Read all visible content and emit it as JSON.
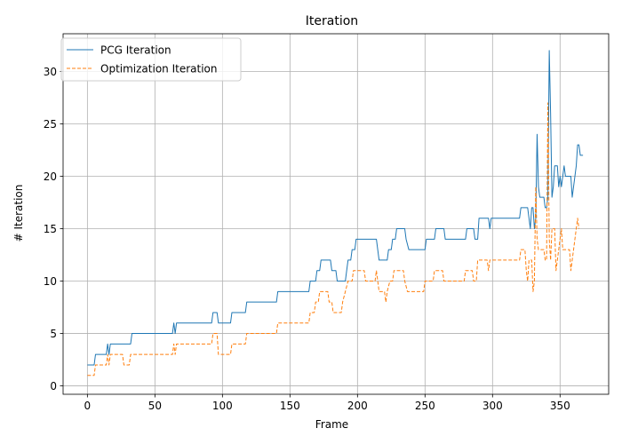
{
  "chart_data": {
    "type": "line",
    "title": "Iteration",
    "xlabel": "Frame",
    "ylabel": "# Iteration",
    "xlim": [
      -18,
      386
    ],
    "ylim": [
      -0.8,
      33.6
    ],
    "xticks": [
      0,
      50,
      100,
      150,
      200,
      250,
      300,
      350
    ],
    "yticks": [
      0,
      5,
      10,
      15,
      20,
      25,
      30
    ],
    "grid": true,
    "legend_position": "top-left",
    "series": [
      {
        "name": "PCG Iteration",
        "color": "#1f77b4",
        "style": "solid",
        "points": [
          [
            0,
            2
          ],
          [
            5,
            2
          ],
          [
            6,
            3
          ],
          [
            14,
            3
          ],
          [
            15,
            4
          ],
          [
            16,
            3
          ],
          [
            17,
            4
          ],
          [
            32,
            4
          ],
          [
            33,
            5
          ],
          [
            63,
            5
          ],
          [
            64,
            6
          ],
          [
            65,
            5
          ],
          [
            66,
            6
          ],
          [
            92,
            6
          ],
          [
            93,
            7
          ],
          [
            96,
            7
          ],
          [
            97,
            6
          ],
          [
            106,
            6
          ],
          [
            107,
            7
          ],
          [
            117,
            7
          ],
          [
            118,
            8
          ],
          [
            140,
            8
          ],
          [
            141,
            9
          ],
          [
            164,
            9
          ],
          [
            165,
            10
          ],
          [
            169,
            10
          ],
          [
            170,
            11
          ],
          [
            172,
            11
          ],
          [
            173,
            12
          ],
          [
            180,
            12
          ],
          [
            181,
            11
          ],
          [
            184,
            11
          ],
          [
            185,
            10
          ],
          [
            191,
            10
          ],
          [
            192,
            11
          ],
          [
            193,
            12
          ],
          [
            195,
            12
          ],
          [
            196,
            13
          ],
          [
            198,
            13
          ],
          [
            199,
            14
          ],
          [
            214,
            14
          ],
          [
            215,
            13
          ],
          [
            216,
            12
          ],
          [
            222,
            12
          ],
          [
            223,
            13
          ],
          [
            225,
            13
          ],
          [
            226,
            14
          ],
          [
            228,
            14
          ],
          [
            229,
            15
          ],
          [
            235,
            15
          ],
          [
            236,
            14
          ],
          [
            238,
            13
          ],
          [
            250,
            13
          ],
          [
            251,
            14
          ],
          [
            257,
            14
          ],
          [
            258,
            15
          ],
          [
            264,
            15
          ],
          [
            265,
            14
          ],
          [
            280,
            14
          ],
          [
            281,
            15
          ],
          [
            286,
            15
          ],
          [
            287,
            14
          ],
          [
            289,
            14
          ],
          [
            290,
            16
          ],
          [
            297,
            16
          ],
          [
            298,
            15
          ],
          [
            299,
            16
          ],
          [
            320,
            16
          ],
          [
            321,
            17
          ],
          [
            326,
            17
          ],
          [
            327,
            16
          ],
          [
            328,
            15
          ],
          [
            329,
            17
          ],
          [
            330,
            17
          ],
          [
            331,
            15
          ],
          [
            332,
            16
          ],
          [
            333,
            24
          ],
          [
            334,
            19
          ],
          [
            335,
            18
          ],
          [
            338,
            18
          ],
          [
            339,
            17
          ],
          [
            340,
            17
          ],
          [
            341,
            18
          ],
          [
            342,
            32
          ],
          [
            343,
            26
          ],
          [
            344,
            18
          ],
          [
            345,
            19
          ],
          [
            346,
            21
          ],
          [
            348,
            21
          ],
          [
            349,
            19
          ],
          [
            350,
            20
          ],
          [
            351,
            19
          ],
          [
            352,
            20
          ],
          [
            353,
            21
          ],
          [
            354,
            20
          ],
          [
            358,
            20
          ],
          [
            359,
            18
          ],
          [
            360,
            19
          ],
          [
            361,
            20
          ],
          [
            362,
            21
          ],
          [
            363,
            23
          ],
          [
            364,
            23
          ],
          [
            365,
            22
          ],
          [
            367,
            22
          ]
        ]
      },
      {
        "name": "Optimization Iteration",
        "color": "#ff7f0e",
        "style": "dashed",
        "points": [
          [
            0,
            1
          ],
          [
            5,
            1
          ],
          [
            6,
            2
          ],
          [
            14,
            2
          ],
          [
            15,
            3
          ],
          [
            16,
            2
          ],
          [
            17,
            3
          ],
          [
            26,
            3
          ],
          [
            27,
            2
          ],
          [
            31,
            2
          ],
          [
            32,
            3
          ],
          [
            63,
            3
          ],
          [
            64,
            4
          ],
          [
            65,
            3
          ],
          [
            66,
            4
          ],
          [
            92,
            4
          ],
          [
            93,
            5
          ],
          [
            96,
            5
          ],
          [
            97,
            3
          ],
          [
            106,
            3
          ],
          [
            107,
            4
          ],
          [
            117,
            4
          ],
          [
            118,
            5
          ],
          [
            140,
            5
          ],
          [
            141,
            6
          ],
          [
            164,
            6
          ],
          [
            165,
            7
          ],
          [
            168,
            7
          ],
          [
            169,
            8
          ],
          [
            171,
            8
          ],
          [
            172,
            9
          ],
          [
            178,
            9
          ],
          [
            179,
            8
          ],
          [
            181,
            8
          ],
          [
            182,
            7
          ],
          [
            188,
            7
          ],
          [
            189,
            8
          ],
          [
            191,
            9
          ],
          [
            193,
            10
          ],
          [
            196,
            10
          ],
          [
            197,
            11
          ],
          [
            205,
            11
          ],
          [
            206,
            10
          ],
          [
            213,
            10
          ],
          [
            214,
            11
          ],
          [
            215,
            10
          ],
          [
            216,
            9
          ],
          [
            220,
            9
          ],
          [
            221,
            8
          ],
          [
            222,
            9
          ],
          [
            224,
            10
          ],
          [
            226,
            10
          ],
          [
            227,
            11
          ],
          [
            234,
            11
          ],
          [
            235,
            10
          ],
          [
            237,
            9
          ],
          [
            249,
            9
          ],
          [
            250,
            10
          ],
          [
            256,
            10
          ],
          [
            257,
            11
          ],
          [
            263,
            11
          ],
          [
            264,
            10
          ],
          [
            279,
            10
          ],
          [
            280,
            11
          ],
          [
            285,
            11
          ],
          [
            286,
            10
          ],
          [
            288,
            10
          ],
          [
            289,
            12
          ],
          [
            296,
            12
          ],
          [
            297,
            11
          ],
          [
            298,
            12
          ],
          [
            320,
            12
          ],
          [
            321,
            13
          ],
          [
            324,
            13
          ],
          [
            325,
            11
          ],
          [
            326,
            10
          ],
          [
            327,
            12
          ],
          [
            329,
            12
          ],
          [
            330,
            9
          ],
          [
            331,
            10
          ],
          [
            332,
            19
          ],
          [
            333,
            14
          ],
          [
            334,
            13
          ],
          [
            338,
            13
          ],
          [
            339,
            12
          ],
          [
            340,
            12
          ],
          [
            341,
            27
          ],
          [
            342,
            14
          ],
          [
            343,
            12
          ],
          [
            344,
            15
          ],
          [
            346,
            15
          ],
          [
            347,
            11
          ],
          [
            348,
            12
          ],
          [
            349,
            13
          ],
          [
            350,
            14
          ],
          [
            351,
            15
          ],
          [
            352,
            13
          ],
          [
            357,
            13
          ],
          [
            358,
            11
          ],
          [
            359,
            12
          ],
          [
            360,
            13
          ],
          [
            361,
            14
          ],
          [
            362,
            15
          ],
          [
            363,
            16
          ],
          [
            364,
            15
          ]
        ]
      }
    ]
  }
}
